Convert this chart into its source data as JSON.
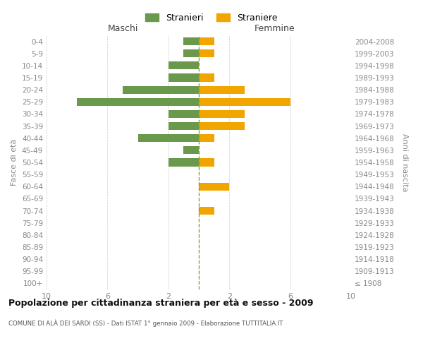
{
  "age_groups": [
    "0-4",
    "5-9",
    "10-14",
    "15-19",
    "20-24",
    "25-29",
    "30-34",
    "35-39",
    "40-44",
    "45-49",
    "50-54",
    "55-59",
    "60-64",
    "65-69",
    "70-74",
    "75-79",
    "80-84",
    "85-89",
    "90-94",
    "95-99",
    "100+"
  ],
  "birth_years": [
    "2004-2008",
    "1999-2003",
    "1994-1998",
    "1989-1993",
    "1984-1988",
    "1979-1983",
    "1974-1978",
    "1969-1973",
    "1964-1968",
    "1959-1963",
    "1954-1958",
    "1949-1953",
    "1944-1948",
    "1939-1943",
    "1934-1938",
    "1929-1933",
    "1924-1928",
    "1919-1923",
    "1914-1918",
    "1909-1913",
    "≤ 1908"
  ],
  "males": [
    1,
    1,
    2,
    2,
    5,
    8,
    2,
    2,
    4,
    1,
    2,
    0,
    0,
    0,
    0,
    0,
    0,
    0,
    0,
    0,
    0
  ],
  "females": [
    1,
    1,
    0,
    1,
    3,
    6,
    3,
    3,
    1,
    0,
    1,
    0,
    2,
    0,
    1,
    0,
    0,
    0,
    0,
    0,
    0
  ],
  "male_color": "#6a994e",
  "female_color": "#f0a500",
  "background_color": "#ffffff",
  "grid_color": "#cccccc",
  "title": "Popolazione per cittadinanza straniera per età e sesso - 2009",
  "subtitle": "COMUNE DI ALÀ DEI SARDI (SS) - Dati ISTAT 1° gennaio 2009 - Elaborazione TUTTITALIA.IT",
  "ylabel_left": "Fasce di età",
  "ylabel_right": "Anni di nascita",
  "xlabel_left": "Maschi",
  "xlabel_right": "Femmine",
  "legend_male": "Stranieri",
  "legend_female": "Straniere",
  "xlim": 10,
  "dashed_line_color": "#999933",
  "xtick_positions": [
    -10,
    -6,
    -2,
    2,
    6,
    10
  ],
  "xtick_labels": [
    "10",
    "6",
    "2",
    "2",
    "6",
    "10"
  ]
}
